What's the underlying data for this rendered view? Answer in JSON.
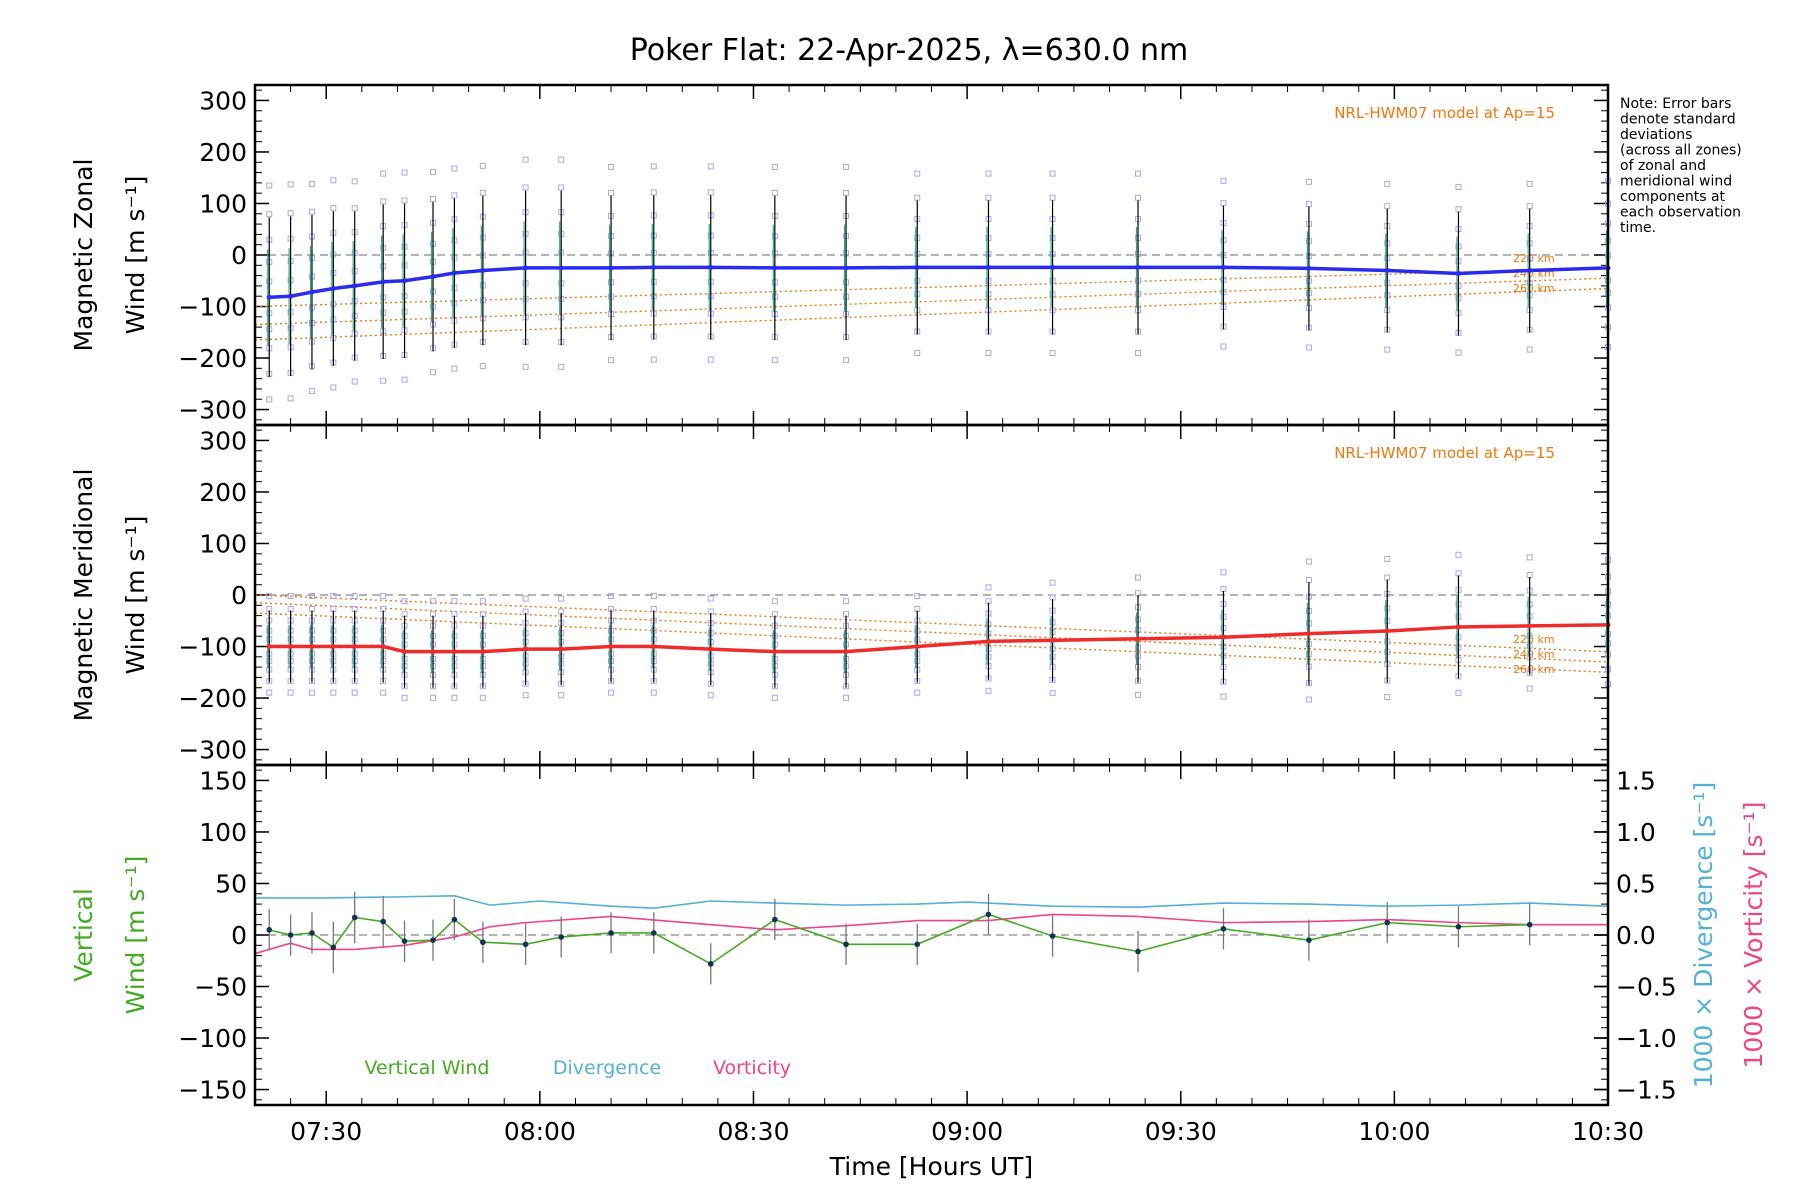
{
  "title": "Poker Flat: 22-Apr-2025, λ=630.0 nm",
  "note": [
    "Note: Error bars",
    "denote standard",
    "deviations",
    "(across all zones)",
    "of zonal and",
    "meridional wind",
    "components at",
    "each observation",
    "time."
  ],
  "colors": {
    "zonal": "#2b2bef",
    "meridional": "#ef2b2b",
    "model": "#ee7711",
    "vertical": "#44aa22",
    "divergence": "#55b0d6",
    "vorticity": "#ee4488",
    "zone_markers": "#a8a8ee",
    "error_bars": "#000000",
    "grid_zero": "#888888"
  },
  "chart_data": [
    {
      "type": "line",
      "panel": "zonal",
      "ylabel": [
        "Magnetic Zonal",
        "Wind [m s⁻¹]"
      ],
      "ylim": [
        -330,
        330
      ],
      "yticks": [
        -300,
        -200,
        -100,
        0,
        100,
        200,
        300
      ],
      "xlim": [
        "07:20",
        "10:30"
      ],
      "model_label": "NRL-HWM07 model at Ap=15",
      "model_altitude_labels": [
        "220 km",
        "240 km",
        "260 km"
      ],
      "times": [
        "07:22",
        "07:25",
        "07:28",
        "07:31",
        "07:34",
        "07:38",
        "07:41",
        "07:45",
        "07:48",
        "07:52",
        "07:58",
        "08:03",
        "08:10",
        "08:16",
        "08:24",
        "08:33",
        "08:43",
        "08:53",
        "09:03",
        "09:12",
        "09:24",
        "09:36",
        "09:48",
        "09:59",
        "10:09",
        "10:19",
        "10:30"
      ],
      "series": [
        {
          "name": "",
          "role": "mean",
          "values": [
            -82,
            -80,
            -72,
            -65,
            -60,
            -52,
            -50,
            -42,
            -35,
            -30,
            -25,
            -25,
            -25,
            -24,
            -24,
            -25,
            -25,
            -24,
            -24,
            -24,
            -24,
            -24,
            -26,
            -30,
            -36,
            -30,
            -25
          ],
          "std": [
            155,
            155,
            150,
            150,
            145,
            150,
            150,
            145,
            145,
            145,
            150,
            150,
            140,
            140,
            140,
            140,
            140,
            130,
            130,
            130,
            130,
            120,
            120,
            120,
            120,
            120,
            120
          ]
        }
      ],
      "model_series": [
        {
          "altitude": "220 km",
          "x": [
            "07:20",
            "10:30"
          ],
          "values": [
            -100,
            -25
          ]
        },
        {
          "altitude": "240 km",
          "x": [
            "07:20",
            "10:30"
          ],
          "values": [
            -135,
            -45
          ]
        },
        {
          "altitude": "260 km",
          "x": [
            "07:20",
            "10:30"
          ],
          "values": [
            -165,
            -65
          ]
        }
      ]
    },
    {
      "type": "line",
      "panel": "meridional",
      "ylabel": [
        "Magnetic Meridional",
        "Wind [m s⁻¹]"
      ],
      "ylim": [
        -330,
        330
      ],
      "yticks": [
        -300,
        -200,
        -100,
        0,
        100,
        200,
        300
      ],
      "xlim": [
        "07:20",
        "10:30"
      ],
      "model_label": "NRL-HWM07 model at Ap=15",
      "model_altitude_labels": [
        "220 km",
        "240 km",
        "260 km"
      ],
      "times": [
        "07:22",
        "07:25",
        "07:28",
        "07:31",
        "07:34",
        "07:38",
        "07:41",
        "07:45",
        "07:48",
        "07:52",
        "07:58",
        "08:03",
        "08:10",
        "08:16",
        "08:24",
        "08:33",
        "08:43",
        "08:53",
        "09:03",
        "09:12",
        "09:24",
        "09:36",
        "09:48",
        "09:59",
        "10:09",
        "10:19",
        "10:30"
      ],
      "series": [
        {
          "name": "",
          "role": "mean",
          "values": [
            -100,
            -100,
            -100,
            -100,
            -100,
            -100,
            -110,
            -110,
            -110,
            -110,
            -105,
            -105,
            -100,
            -100,
            -105,
            -110,
            -110,
            -100,
            -90,
            -88,
            -85,
            -82,
            -75,
            -70,
            -62,
            -60,
            -58
          ],
          "std": [
            70,
            70,
            70,
            70,
            70,
            70,
            70,
            70,
            70,
            70,
            70,
            70,
            70,
            70,
            70,
            70,
            70,
            70,
            75,
            80,
            85,
            90,
            100,
            100,
            100,
            95,
            90
          ]
        }
      ],
      "model_series": [
        {
          "altitude": "220 km",
          "x": [
            "07:20",
            "10:30"
          ],
          "values": [
            0,
            -110
          ]
        },
        {
          "altitude": "240 km",
          "x": [
            "07:20",
            "10:30"
          ],
          "values": [
            -15,
            -130
          ]
        },
        {
          "altitude": "260 km",
          "x": [
            "07:20",
            "10:30"
          ],
          "values": [
            -35,
            -150
          ]
        }
      ]
    },
    {
      "type": "line",
      "panel": "vertical",
      "ylabel": [
        "Vertical",
        "Wind [m s⁻¹]"
      ],
      "ylim": [
        -165,
        165
      ],
      "yticks": [
        -150,
        -100,
        -50,
        0,
        50,
        100,
        150
      ],
      "y2label_divergence": "1000 × Divergence [s⁻¹]",
      "y2label_vorticity": "1000 × Vorticity [s⁻¹]",
      "y2lim": [
        -1.65,
        1.65
      ],
      "y2ticks": [
        -1.5,
        -1.0,
        -0.5,
        0.0,
        0.5,
        1.0,
        1.5
      ],
      "y2ticklabels": [
        "-1.5",
        "-1.0",
        "-0.5",
        "0.0",
        "0.5",
        "1.0",
        "1.5"
      ],
      "xlim": [
        "07:20",
        "10:30"
      ],
      "xticks": [
        "07:30",
        "08:00",
        "08:30",
        "09:00",
        "09:30",
        "10:00",
        "10:30"
      ],
      "xlabel": "Time [Hours UT]",
      "legend": [
        "Vertical Wind",
        "Divergence",
        "Vorticity"
      ],
      "series": [
        {
          "name": "Vertical Wind",
          "x": [
            "07:22",
            "07:25",
            "07:28",
            "07:31",
            "07:34",
            "07:38",
            "07:41",
            "07:45",
            "07:48",
            "07:52",
            "07:58",
            "08:03",
            "08:10",
            "08:16",
            "08:24",
            "08:33",
            "08:43",
            "08:53",
            "09:03",
            "09:12",
            "09:24",
            "09:36",
            "09:48",
            "09:59",
            "10:09",
            "10:19"
          ],
          "values": [
            5,
            0,
            2,
            -12,
            17,
            13,
            -6,
            -5,
            15,
            -7,
            -9,
            -2,
            2,
            2,
            -28,
            15,
            -9,
            -9,
            20,
            -1,
            -16,
            6,
            -5,
            12,
            8,
            10
          ],
          "std": [
            20,
            20,
            20,
            25,
            25,
            25,
            20,
            20,
            20,
            20,
            20,
            20,
            20,
            20,
            20,
            20,
            20,
            20,
            20,
            20,
            20,
            20,
            20,
            20,
            20,
            20
          ]
        },
        {
          "name": "Divergence",
          "x": [
            "07:20",
            "07:30",
            "07:40",
            "07:48",
            "07:53",
            "08:00",
            "08:10",
            "08:16",
            "08:24",
            "08:33",
            "08:43",
            "08:53",
            "09:00",
            "09:12",
            "09:24",
            "09:36",
            "09:48",
            "09:59",
            "10:09",
            "10:19",
            "10:30"
          ],
          "values": [
            0.36,
            0.36,
            0.37,
            0.38,
            0.29,
            0.33,
            0.28,
            0.26,
            0.33,
            0.31,
            0.29,
            0.3,
            0.32,
            0.28,
            0.27,
            0.31,
            0.3,
            0.28,
            0.29,
            0.31,
            0.28
          ]
        },
        {
          "name": "Vorticity",
          "x": [
            "07:20",
            "07:25",
            "07:28",
            "07:34",
            "07:41",
            "07:48",
            "07:53",
            "07:58",
            "08:10",
            "08:24",
            "08:33",
            "08:43",
            "08:53",
            "09:03",
            "09:12",
            "09:24",
            "09:36",
            "09:48",
            "09:59",
            "10:09",
            "10:19",
            "10:30"
          ],
          "values": [
            -0.18,
            -0.08,
            -0.14,
            -0.14,
            -0.1,
            -0.02,
            0.08,
            0.12,
            0.18,
            0.1,
            0.05,
            0.09,
            0.14,
            0.14,
            0.2,
            0.18,
            0.12,
            0.13,
            0.15,
            0.12,
            0.1,
            0.1
          ]
        }
      ]
    }
  ]
}
